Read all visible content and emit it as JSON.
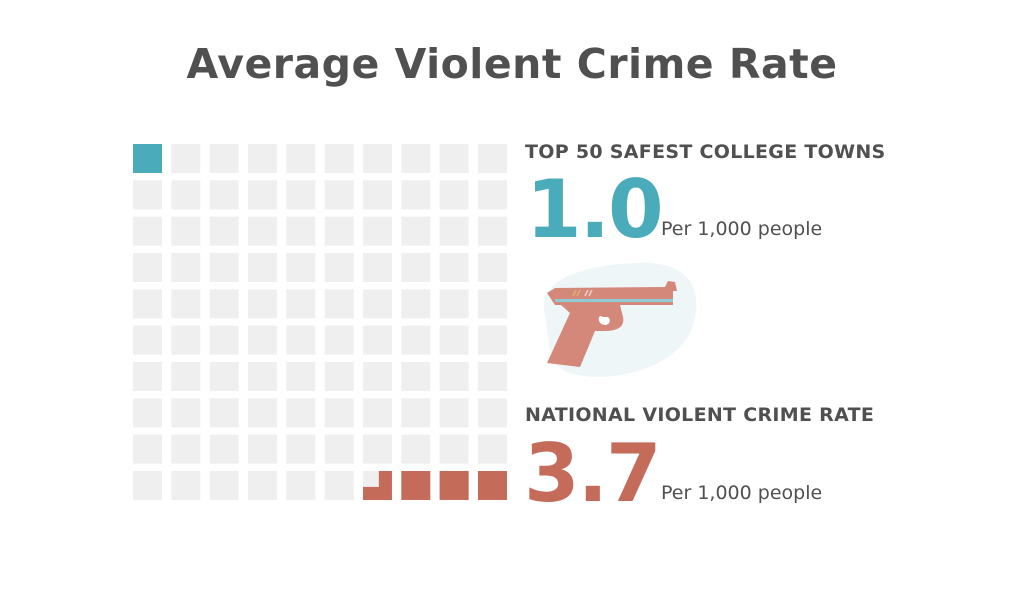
{
  "chart_data": {
    "type": "waffle",
    "title": "Average Violent Crime Rate",
    "grid": {
      "rows": 10,
      "cols": 10,
      "total": 100
    },
    "series": [
      {
        "name": "TOP 50 SAFEST COLLEGE TOWNS",
        "value": 1.0,
        "unit": "Per 1,000 people",
        "color": "#4aabba",
        "fill_from": "top-left"
      },
      {
        "name": "NATIONAL VIOLENT CRIME RATE",
        "value": 3.7,
        "unit": "Per 1,000 people",
        "color": "#c56b5a",
        "fill_from": "bottom-right"
      }
    ],
    "empty_color": "#efefef"
  },
  "icon": "handgun-icon"
}
